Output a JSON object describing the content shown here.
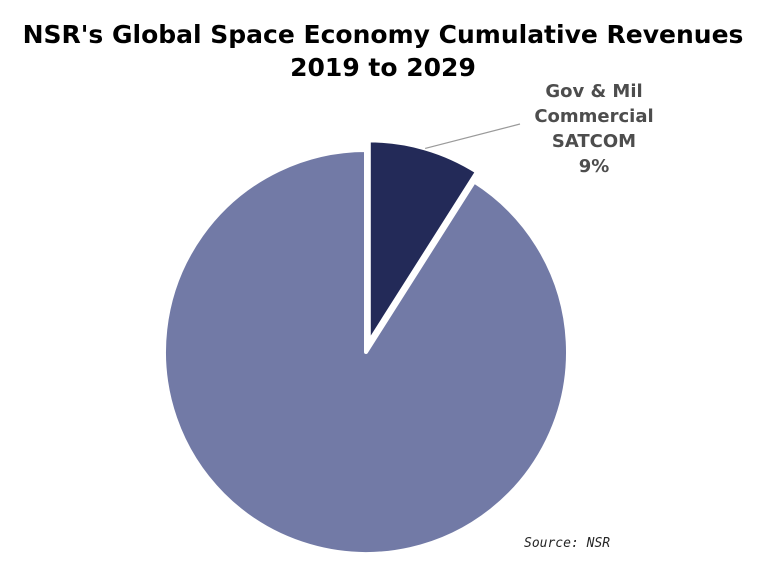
{
  "chart_data": {
    "type": "pie",
    "title_line1": "NSR's Global Space Economy Cumulative Revenues",
    "title_line2": "2019 to 2029",
    "slices": [
      {
        "label_lines": [
          "Gov & Mil",
          "Commercial",
          "SATCOM",
          "9%"
        ],
        "value": 9,
        "color": "#232a58",
        "exploded": true
      },
      {
        "label_lines": [],
        "value": 91,
        "color": "#727aa6",
        "exploded": false
      }
    ],
    "legend": "none"
  },
  "source": "Source: NSR"
}
